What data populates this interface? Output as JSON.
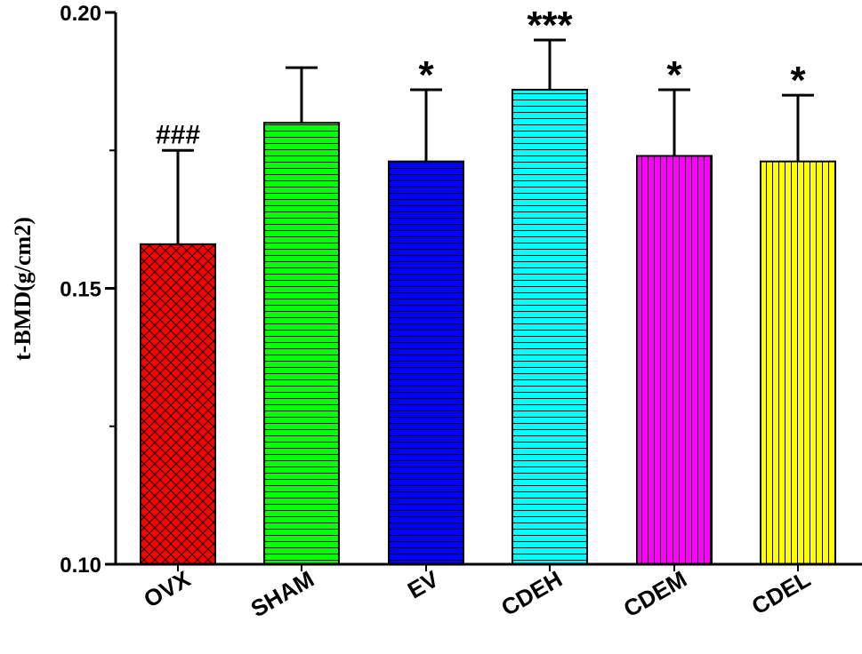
{
  "chart_data": {
    "type": "bar",
    "title": "",
    "xlabel": "",
    "ylabel": "t-BMD(g/cm2)",
    "ylim": [
      0.1,
      0.2
    ],
    "yticks": [
      "0.10",
      "0.15",
      "0.20"
    ],
    "categories": [
      "OVX",
      "SHAM",
      "EV",
      "CDEH",
      "CDEM",
      "CDEL"
    ],
    "values": [
      0.158,
      0.18,
      0.173,
      0.186,
      0.174,
      0.173
    ],
    "errors": [
      0.017,
      0.01,
      0.013,
      0.009,
      0.012,
      0.012
    ],
    "annotations": [
      "###",
      "",
      "*",
      "***",
      "*",
      "*"
    ],
    "colors": [
      "#ff0000",
      "#00ff00",
      "#0000ff",
      "#00ffff",
      "#ff00ff",
      "#ffff00"
    ],
    "patterns": [
      "crosshatch",
      "horizontal",
      "horizontal",
      "horizontal",
      "vertical",
      "vertical"
    ]
  }
}
